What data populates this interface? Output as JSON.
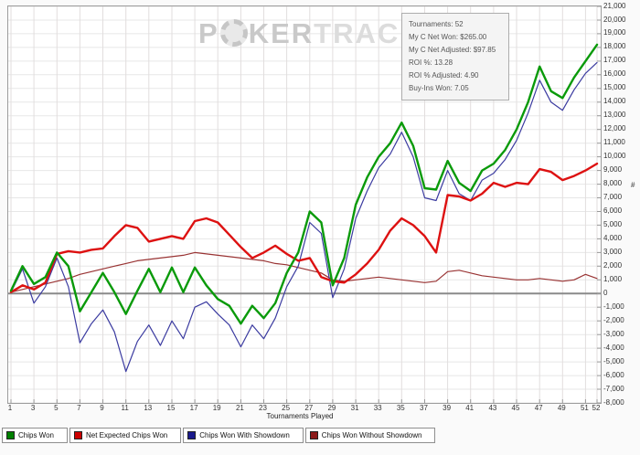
{
  "watermark": {
    "p": "P",
    "ker": "KER",
    "tracker": "TRACKER"
  },
  "info_box": {
    "lines": [
      "Tournaments: 52",
      "My C Net Won: $265.00",
      "My C Net Adjusted: $97.85",
      "ROI %: 13.28",
      "ROI % Adjusted: 4.90",
      "Buy-Ins Won: 7.05"
    ]
  },
  "legend": [
    {
      "label": "Chips Won",
      "color": "#008000"
    },
    {
      "label": "Net Expected Chips Won",
      "color": "#cc0000"
    },
    {
      "label": "Chips Won With Showdown",
      "color": "#1a1a8c"
    },
    {
      "label": "Chips Won Without Showdown",
      "color": "#8c1a1a"
    }
  ],
  "chart_data": {
    "type": "line",
    "title": "",
    "xlabel": "Tournaments Played",
    "ylabel": "#",
    "ylim": [
      -8000,
      21000
    ],
    "y_step": 1000,
    "grid": true,
    "legend_position": "bottom",
    "x": [
      1,
      2,
      3,
      4,
      5,
      6,
      7,
      8,
      9,
      10,
      11,
      12,
      13,
      14,
      15,
      16,
      17,
      18,
      19,
      20,
      21,
      22,
      23,
      24,
      25,
      26,
      27,
      28,
      29,
      30,
      31,
      32,
      33,
      34,
      35,
      36,
      37,
      38,
      39,
      40,
      41,
      42,
      43,
      44,
      45,
      46,
      47,
      48,
      49,
      50,
      51,
      52
    ],
    "x_ticks": [
      1,
      3,
      5,
      7,
      9,
      11,
      13,
      15,
      17,
      19,
      21,
      23,
      25,
      27,
      29,
      31,
      33,
      35,
      37,
      39,
      41,
      43,
      45,
      47,
      49,
      51,
      52
    ],
    "series": [
      {
        "id": "chips-won",
        "name": "Chips Won",
        "color": "#0a9a0a",
        "width": 2.4,
        "values": [
          200,
          2000,
          700,
          1200,
          3000,
          2000,
          -1300,
          100,
          1500,
          100,
          -1500,
          200,
          1800,
          100,
          1900,
          100,
          1900,
          600,
          -400,
          -900,
          -2200,
          -900,
          -1800,
          -700,
          1500,
          3000,
          6000,
          5200,
          600,
          2600,
          6500,
          8500,
          10000,
          11000,
          12500,
          10800,
          7700,
          7600,
          9700,
          8100,
          7500,
          9000,
          9500,
          10500,
          12000,
          14000,
          16600,
          14800,
          14300,
          15800,
          17000,
          18200
        ]
      },
      {
        "id": "net-expected-chips-won",
        "name": "Net Expected Chips Won",
        "color": "#dd1111",
        "width": 2.4,
        "values": [
          100,
          600,
          300,
          800,
          2900,
          3100,
          3000,
          3200,
          3300,
          4200,
          5000,
          4800,
          3800,
          4000,
          4200,
          4000,
          5300,
          5500,
          5200,
          4300,
          3400,
          2600,
          3000,
          3500,
          2900,
          2400,
          2600,
          1200,
          900,
          800,
          1400,
          2200,
          3200,
          4600,
          5500,
          5000,
          4200,
          3000,
          7200,
          7100,
          6800,
          7300,
          8100,
          7800,
          8100,
          8000,
          9100,
          8900,
          8300,
          8600,
          9000,
          9500
        ]
      },
      {
        "id": "chips-won-with-showdown",
        "name": "Chips Won With Showdown",
        "color": "#3b3ba0",
        "width": 1.2,
        "values": [
          100,
          1800,
          -700,
          500,
          2600,
          500,
          -3600,
          -2200,
          -1200,
          -2800,
          -5700,
          -3500,
          -2300,
          -3800,
          -2000,
          -3300,
          -1000,
          -600,
          -1500,
          -2300,
          -3900,
          -2300,
          -3300,
          -1800,
          500,
          2000,
          5200,
          4400,
          -300,
          1800,
          5500,
          7500,
          9200,
          10200,
          11800,
          10000,
          7000,
          6800,
          9000,
          7300,
          6800,
          8300,
          8800,
          9800,
          11200,
          13200,
          15600,
          14000,
          13400,
          14900,
          16100,
          16900
        ]
      },
      {
        "id": "chips-won-without-showdown",
        "name": "Chips Won Without Showdown",
        "color": "#993333",
        "width": 1.2,
        "values": [
          100,
          300,
          500,
          700,
          900,
          1100,
          1400,
          1600,
          1800,
          2000,
          2200,
          2400,
          2500,
          2600,
          2700,
          2800,
          3000,
          2900,
          2800,
          2700,
          2600,
          2500,
          2400,
          2200,
          2100,
          1900,
          1700,
          1500,
          1000,
          900,
          1000,
          1100,
          1200,
          1100,
          1000,
          900,
          800,
          900,
          1600,
          1700,
          1500,
          1300,
          1200,
          1100,
          1000,
          1000,
          1100,
          1000,
          900,
          1000,
          1400,
          1100
        ]
      }
    ]
  }
}
